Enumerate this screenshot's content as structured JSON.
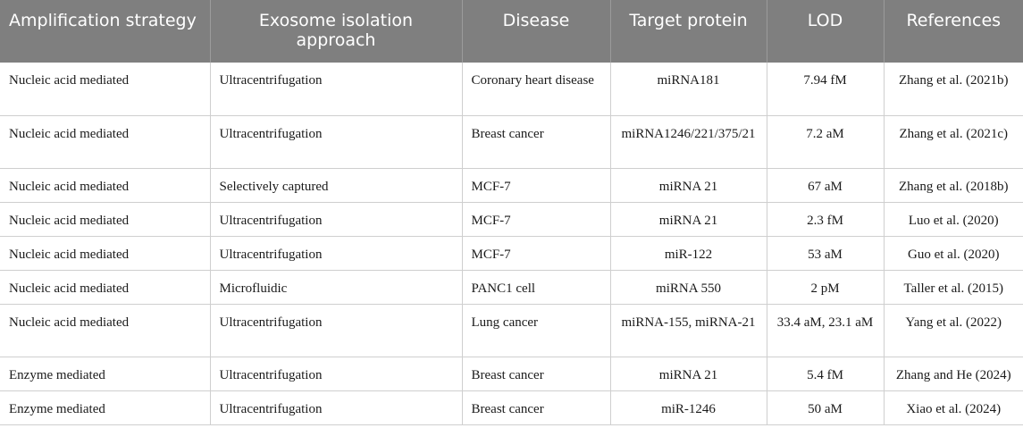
{
  "headers": {
    "strategy": "Amplification strategy",
    "isolation": "Exosome isolation approach",
    "disease": "Disease",
    "target": "Target protein",
    "lod": "LOD",
    "references": "References"
  },
  "rows": [
    {
      "strategy": "Nucleic acid mediated",
      "isolation": "Ultracentrifugation",
      "disease": "Coronary heart disease",
      "target": "miRNA181",
      "lod": "7.94 fM",
      "reference": "Zhang et al. (2021b)"
    },
    {
      "strategy": "Nucleic acid mediated",
      "isolation": "Ultracentrifugation",
      "disease": "Breast cancer",
      "target": "miRNA1246/221/375/21",
      "lod": "7.2 aM",
      "reference": "Zhang et al. (2021c)"
    },
    {
      "strategy": "Nucleic acid mediated",
      "isolation": "Selectively captured",
      "disease": "MCF-7",
      "target": "miRNA 21",
      "lod": "67 aM",
      "reference": "Zhang et al. (2018b)"
    },
    {
      "strategy": "Nucleic acid mediated",
      "isolation": "Ultracentrifugation",
      "disease": "MCF-7",
      "target": "miRNA 21",
      "lod": "2.3 fM",
      "reference": "Luo et al. (2020)"
    },
    {
      "strategy": "Nucleic acid mediated",
      "isolation": "Ultracentrifugation",
      "disease": "MCF-7",
      "target": "miR-122",
      "lod": "53 aM",
      "reference": "Guo et al. (2020)"
    },
    {
      "strategy": "Nucleic acid mediated",
      "isolation": "Microfluidic",
      "disease": "PANC1 cell",
      "target": "miRNA 550",
      "lod": "2 pM",
      "reference": "Taller et al. (2015)"
    },
    {
      "strategy": "Nucleic acid mediated",
      "isolation": "Ultracentrifugation",
      "disease": "Lung cancer",
      "target": "miRNA-155, miRNA-21",
      "lod": "33.4 aM, 23.1 aM",
      "reference": "Yang et al. (2022)"
    },
    {
      "strategy": "Enzyme mediated",
      "isolation": "Ultracentrifugation",
      "disease": "Breast cancer",
      "target": "miRNA 21",
      "lod": "5.4 fM",
      "reference": "Zhang and He (2024)"
    },
    {
      "strategy": "Enzyme mediated",
      "isolation": "Ultracentrifugation",
      "disease": "Breast cancer",
      "target": "miR-1246",
      "lod": "50 aM",
      "reference": "Xiao et al. (2024)"
    }
  ]
}
